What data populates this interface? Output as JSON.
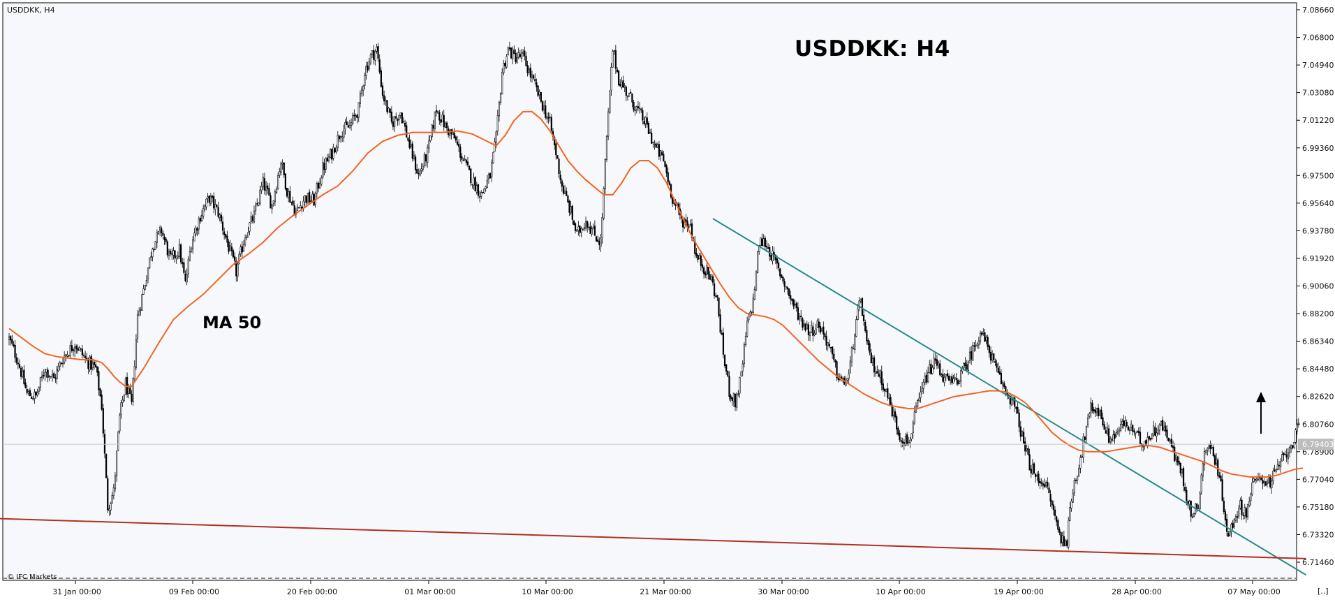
{
  "chart_data": {
    "type": "candlestick",
    "symbol_timeframe": "USDDKK, H4",
    "title": "USDDKK: H4",
    "indicator_label": "MA 50",
    "brand": "© IFC Markets",
    "corner_button": "[..]",
    "current_price": "6.79403",
    "ylim": [
      6.706,
      7.0866
    ],
    "y_ticks": [
      "7.08660",
      "7.06800",
      "7.04940",
      "7.03080",
      "7.01220",
      "6.99360",
      "6.97500",
      "6.95640",
      "6.93780",
      "6.91920",
      "6.90060",
      "6.88200",
      "6.86340",
      "6.84480",
      "6.82620",
      "6.80760",
      "6.78900",
      "6.77040",
      "6.75180",
      "6.73320",
      "6.71460"
    ],
    "x_ticks": [
      "31 Jan 00:00",
      "09 Feb 00:00",
      "20 Feb 00:00",
      "01 Mar 00:00",
      "10 Mar 00:00",
      "21 Mar 00:00",
      "30 Mar 00:00",
      "10 Apr 00:00",
      "19 Apr 00:00",
      "28 Apr 00:00",
      "07 May 00:00"
    ],
    "close_path": [
      [
        0,
        6.865
      ],
      [
        6,
        6.85
      ],
      [
        12,
        6.828
      ],
      [
        18,
        6.826
      ],
      [
        24,
        6.845
      ],
      [
        30,
        6.838
      ],
      [
        36,
        6.852
      ],
      [
        44,
        6.862
      ],
      [
        52,
        6.85
      ],
      [
        58,
        6.845
      ],
      [
        62,
        6.82
      ],
      [
        66,
        6.752
      ],
      [
        70,
        6.762
      ],
      [
        74,
        6.812
      ],
      [
        78,
        6.835
      ],
      [
        82,
        6.82
      ],
      [
        86,
        6.88
      ],
      [
        90,
        6.898
      ],
      [
        96,
        6.928
      ],
      [
        102,
        6.938
      ],
      [
        108,
        6.918
      ],
      [
        114,
        6.925
      ],
      [
        118,
        6.902
      ],
      [
        122,
        6.93
      ],
      [
        128,
        6.948
      ],
      [
        134,
        6.96
      ],
      [
        140,
        6.95
      ],
      [
        146,
        6.93
      ],
      [
        152,
        6.91
      ],
      [
        158,
        6.935
      ],
      [
        164,
        6.948
      ],
      [
        170,
        6.97
      ],
      [
        176,
        6.955
      ],
      [
        182,
        6.985
      ],
      [
        186,
        6.965
      ],
      [
        192,
        6.95
      ],
      [
        198,
        6.96
      ],
      [
        204,
        6.958
      ],
      [
        210,
        6.98
      ],
      [
        216,
        6.99
      ],
      [
        222,
        7.005
      ],
      [
        228,
        7.008
      ],
      [
        234,
        7.02
      ],
      [
        238,
        7.045
      ],
      [
        242,
        7.055
      ],
      [
        246,
        7.06
      ],
      [
        250,
        7.03
      ],
      [
        256,
        7.01
      ],
      [
        262,
        7.018
      ],
      [
        268,
        6.995
      ],
      [
        274,
        6.975
      ],
      [
        280,
        6.99
      ],
      [
        286,
        7.02
      ],
      [
        292,
        7.008
      ],
      [
        298,
        7.0
      ],
      [
        304,
        6.985
      ],
      [
        310,
        6.972
      ],
      [
        316,
        6.962
      ],
      [
        322,
        6.975
      ],
      [
        326,
        7.0
      ],
      [
        330,
        7.045
      ],
      [
        334,
        7.06
      ],
      [
        338,
        7.055
      ],
      [
        344,
        7.055
      ],
      [
        350,
        7.04
      ],
      [
        356,
        7.025
      ],
      [
        362,
        7.01
      ],
      [
        366,
        6.99
      ],
      [
        370,
        6.968
      ],
      [
        376,
        6.95
      ],
      [
        380,
        6.935
      ],
      [
        386,
        6.945
      ],
      [
        392,
        6.935
      ],
      [
        396,
        6.93
      ],
      [
        400,
        7.0
      ],
      [
        404,
        7.06
      ],
      [
        408,
        7.04
      ],
      [
        414,
        7.03
      ],
      [
        420,
        7.02
      ],
      [
        426,
        7.01
      ],
      [
        432,
        6.995
      ],
      [
        438,
        6.985
      ],
      [
        444,
        6.96
      ],
      [
        450,
        6.945
      ],
      [
        456,
        6.942
      ],
      [
        460,
        6.92
      ],
      [
        464,
        6.915
      ],
      [
        470,
        6.905
      ],
      [
        474,
        6.89
      ],
      [
        478,
        6.855
      ],
      [
        482,
        6.83
      ],
      [
        486,
        6.822
      ],
      [
        490,
        6.84
      ],
      [
        494,
        6.875
      ],
      [
        498,
        6.89
      ],
      [
        502,
        6.93
      ],
      [
        506,
        6.93
      ],
      [
        512,
        6.918
      ],
      [
        518,
        6.905
      ],
      [
        524,
        6.89
      ],
      [
        530,
        6.878
      ],
      [
        536,
        6.87
      ],
      [
        542,
        6.875
      ],
      [
        548,
        6.862
      ],
      [
        554,
        6.842
      ],
      [
        558,
        6.835
      ],
      [
        562,
        6.84
      ],
      [
        566,
        6.87
      ],
      [
        570,
        6.892
      ],
      [
        574,
        6.86
      ],
      [
        578,
        6.848
      ],
      [
        584,
        6.838
      ],
      [
        590,
        6.82
      ],
      [
        596,
        6.8
      ],
      [
        602,
        6.795
      ],
      [
        608,
        6.82
      ],
      [
        614,
        6.84
      ],
      [
        620,
        6.85
      ],
      [
        626,
        6.838
      ],
      [
        632,
        6.835
      ],
      [
        638,
        6.842
      ],
      [
        644,
        6.855
      ],
      [
        650,
        6.87
      ],
      [
        656,
        6.858
      ],
      [
        660,
        6.845
      ],
      [
        666,
        6.832
      ],
      [
        672,
        6.822
      ],
      [
        676,
        6.808
      ],
      [
        680,
        6.79
      ],
      [
        684,
        6.778
      ],
      [
        688,
        6.77
      ],
      [
        692,
        6.77
      ],
      [
        696,
        6.76
      ],
      [
        700,
        6.745
      ],
      [
        704,
        6.73
      ],
      [
        708,
        6.73
      ],
      [
        712,
        6.765
      ],
      [
        716,
        6.78
      ],
      [
        720,
        6.8
      ],
      [
        724,
        6.818
      ],
      [
        728,
        6.818
      ],
      [
        732,
        6.81
      ],
      [
        736,
        6.798
      ],
      [
        740,
        6.8
      ],
      [
        746,
        6.808
      ],
      [
        752,
        6.803
      ],
      [
        758,
        6.795
      ],
      [
        764,
        6.8
      ],
      [
        770,
        6.808
      ],
      [
        776,
        6.8
      ],
      [
        780,
        6.785
      ],
      [
        784,
        6.778
      ],
      [
        788,
        6.76
      ],
      [
        792,
        6.745
      ],
      [
        796,
        6.755
      ],
      [
        800,
        6.79
      ],
      [
        804,
        6.792
      ],
      [
        808,
        6.782
      ],
      [
        812,
        6.76
      ],
      [
        816,
        6.73
      ],
      [
        820,
        6.745
      ],
      [
        824,
        6.752
      ],
      [
        828,
        6.748
      ],
      [
        832,
        6.766
      ],
      [
        838,
        6.772
      ],
      [
        844,
        6.768
      ],
      [
        850,
        6.78
      ],
      [
        856,
        6.79
      ],
      [
        860,
        6.798
      ],
      [
        863,
        6.805
      ]
    ],
    "ma50_path": [
      [
        0,
        6.872
      ],
      [
        8,
        6.866
      ],
      [
        16,
        6.86
      ],
      [
        24,
        6.855
      ],
      [
        32,
        6.853
      ],
      [
        40,
        6.852
      ],
      [
        48,
        6.851
      ],
      [
        56,
        6.851
      ],
      [
        62,
        6.849
      ],
      [
        66,
        6.845
      ],
      [
        70,
        6.84
      ],
      [
        74,
        6.836
      ],
      [
        78,
        6.833
      ],
      [
        82,
        6.833
      ],
      [
        90,
        6.845
      ],
      [
        100,
        6.862
      ],
      [
        110,
        6.878
      ],
      [
        120,
        6.887
      ],
      [
        130,
        6.895
      ],
      [
        140,
        6.905
      ],
      [
        150,
        6.915
      ],
      [
        160,
        6.922
      ],
      [
        170,
        6.93
      ],
      [
        180,
        6.94
      ],
      [
        190,
        6.948
      ],
      [
        200,
        6.955
      ],
      [
        210,
        6.962
      ],
      [
        220,
        6.968
      ],
      [
        230,
        6.978
      ],
      [
        240,
        6.99
      ],
      [
        250,
        6.998
      ],
      [
        260,
        7.002
      ],
      [
        270,
        7.004
      ],
      [
        280,
        7.004
      ],
      [
        290,
        7.004
      ],
      [
        300,
        7.005
      ],
      [
        310,
        7.003
      ],
      [
        320,
        6.998
      ],
      [
        326,
        6.995
      ],
      [
        332,
        7.002
      ],
      [
        338,
        7.012
      ],
      [
        344,
        7.018
      ],
      [
        350,
        7.018
      ],
      [
        356,
        7.013
      ],
      [
        362,
        7.005
      ],
      [
        368,
        6.995
      ],
      [
        374,
        6.985
      ],
      [
        380,
        6.978
      ],
      [
        386,
        6.972
      ],
      [
        392,
        6.967
      ],
      [
        398,
        6.962
      ],
      [
        404,
        6.962
      ],
      [
        410,
        6.97
      ],
      [
        416,
        6.98
      ],
      [
        422,
        6.985
      ],
      [
        428,
        6.985
      ],
      [
        434,
        6.98
      ],
      [
        440,
        6.97
      ],
      [
        446,
        6.957
      ],
      [
        452,
        6.944
      ],
      [
        458,
        6.932
      ],
      [
        464,
        6.922
      ],
      [
        470,
        6.912
      ],
      [
        476,
        6.902
      ],
      [
        482,
        6.893
      ],
      [
        488,
        6.886
      ],
      [
        494,
        6.882
      ],
      [
        500,
        6.881
      ],
      [
        506,
        6.88
      ],
      [
        512,
        6.878
      ],
      [
        518,
        6.874
      ],
      [
        524,
        6.868
      ],
      [
        530,
        6.862
      ],
      [
        536,
        6.856
      ],
      [
        542,
        6.85
      ],
      [
        548,
        6.845
      ],
      [
        554,
        6.84
      ],
      [
        560,
        6.836
      ],
      [
        566,
        6.832
      ],
      [
        572,
        6.828
      ],
      [
        578,
        6.825
      ],
      [
        584,
        6.822
      ],
      [
        590,
        6.82
      ],
      [
        596,
        6.819
      ],
      [
        602,
        6.818
      ],
      [
        608,
        6.818
      ],
      [
        614,
        6.82
      ],
      [
        620,
        6.822
      ],
      [
        626,
        6.824
      ],
      [
        632,
        6.826
      ],
      [
        638,
        6.827
      ],
      [
        644,
        6.828
      ],
      [
        650,
        6.829
      ],
      [
        656,
        6.83
      ],
      [
        662,
        6.83
      ],
      [
        668,
        6.829
      ],
      [
        674,
        6.826
      ],
      [
        680,
        6.822
      ],
      [
        686,
        6.816
      ],
      [
        692,
        6.809
      ],
      [
        698,
        6.802
      ],
      [
        704,
        6.797
      ],
      [
        710,
        6.793
      ],
      [
        716,
        6.79
      ],
      [
        722,
        6.789
      ],
      [
        728,
        6.789
      ],
      [
        734,
        6.789
      ],
      [
        740,
        6.79
      ],
      [
        746,
        6.791
      ],
      [
        752,
        6.792
      ],
      [
        758,
        6.793
      ],
      [
        764,
        6.793
      ],
      [
        770,
        6.792
      ],
      [
        776,
        6.79
      ],
      [
        782,
        6.788
      ],
      [
        788,
        6.786
      ],
      [
        794,
        6.784
      ],
      [
        800,
        6.782
      ],
      [
        806,
        6.779
      ],
      [
        812,
        6.776
      ],
      [
        818,
        6.774
      ],
      [
        824,
        6.773
      ],
      [
        830,
        6.772
      ],
      [
        836,
        6.772
      ],
      [
        842,
        6.772
      ],
      [
        848,
        6.773
      ],
      [
        854,
        6.775
      ],
      [
        860,
        6.777
      ],
      [
        866,
        6.778
      ]
    ],
    "trendlines": [
      {
        "name": "descending-trendline",
        "color": "#2a8a8a",
        "start": [
          471,
          6.946
        ],
        "end": [
          868,
          6.706
        ]
      },
      {
        "name": "support-line",
        "color": "#b03020",
        "start": [
          -9,
          6.744
        ],
        "end": [
          868,
          6.717
        ]
      }
    ],
    "bars_from_start": 864,
    "colors": {
      "background": "#f7f8fc",
      "candle": "#000000",
      "ma": "#f26522",
      "grid": "#d6d6d6",
      "price_tag": "#bdbdbd"
    }
  }
}
